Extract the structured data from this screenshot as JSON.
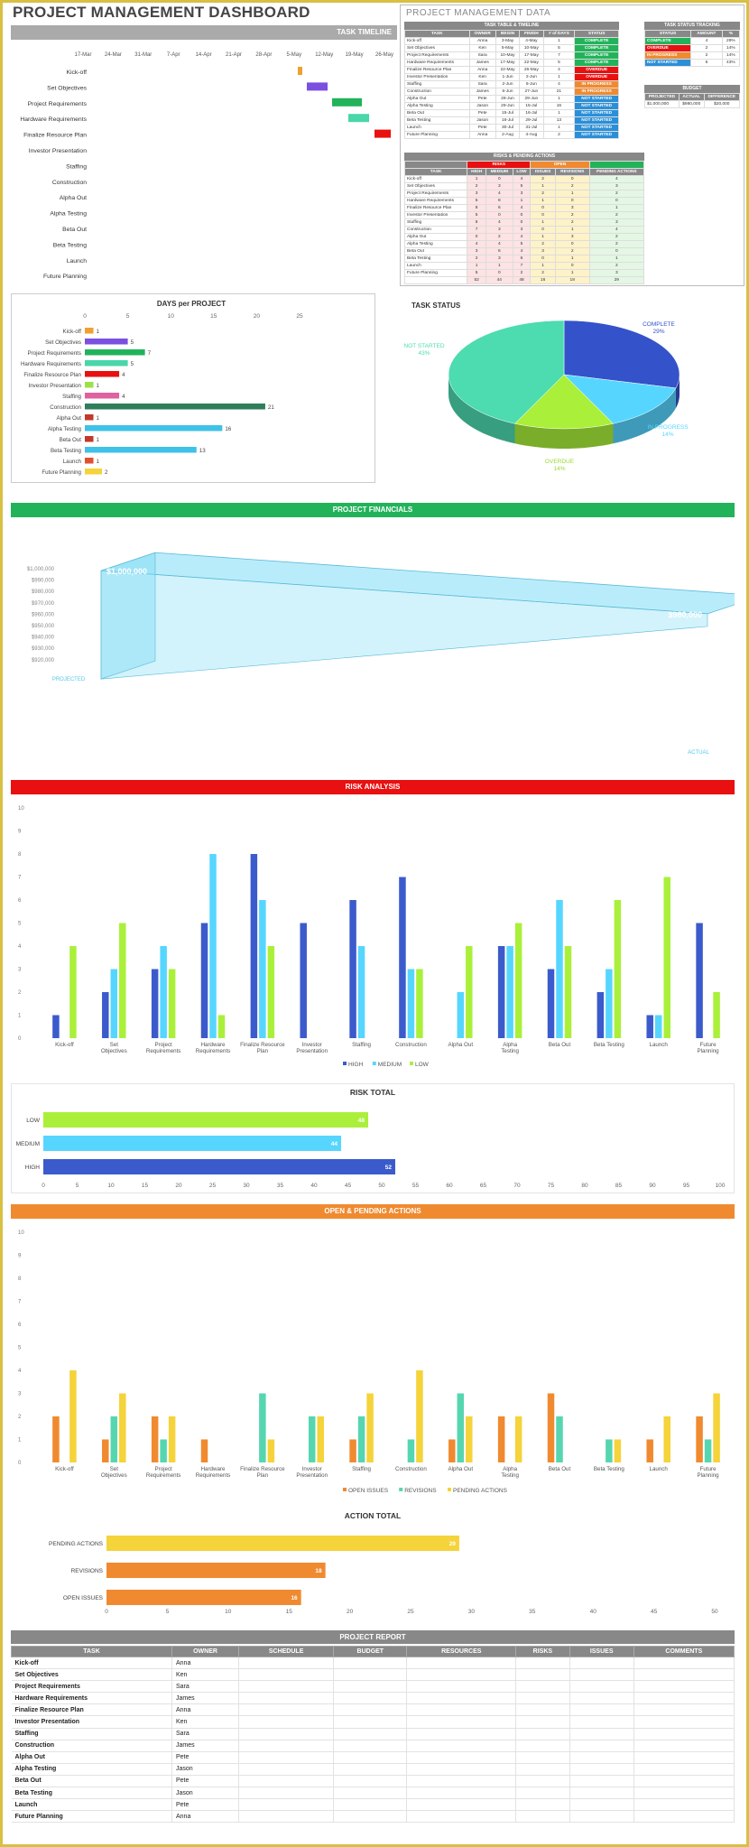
{
  "header": {
    "title": "PROJECT MANAGEMENT DASHBOARD"
  },
  "tasks": [
    "Kick-off",
    "Set Objectives",
    "Project Requirements",
    "Hardware Requirements",
    "Finalize Resource Plan",
    "Investor Presentation",
    "Staffing",
    "Construction",
    "Alpha Out",
    "Alpha Testing",
    "Beta Out",
    "Beta Testing",
    "Launch",
    "Future Planning"
  ],
  "owners": [
    "Anna",
    "Ken",
    "Sara",
    "James",
    "Anna",
    "Ken",
    "Sara",
    "James",
    "Pete",
    "Jason",
    "Pete",
    "Jason",
    "Pete",
    "Anna"
  ],
  "timeline": {
    "title": "TASK TIMELINE",
    "dates": [
      "17-Mar",
      "24-Mar",
      "31-Mar",
      "7-Apr",
      "14-Apr",
      "21-Apr",
      "28-Apr",
      "5-May",
      "12-May",
      "19-May",
      "26-May"
    ],
    "color_orange": "#f0a030",
    "color_purple": "#7b4fe0",
    "color_green": "#22b35a",
    "color_teal": "#49d6a8",
    "color_red": "#e81010"
  },
  "data_panel": {
    "title": "PROJECT MANAGEMENT DATA",
    "timeline_table": {
      "title": "TASK TABLE & TIMELINE",
      "headers": [
        "TASK",
        "OWNER",
        "BEGIN",
        "FINISH",
        "# of DAYS",
        "STATUS"
      ],
      "rows": [
        [
          "Kick-off",
          "Anna",
          "3-May",
          "4-May",
          "1",
          "COMPLETE"
        ],
        [
          "Set Objectives",
          "Ken",
          "5-May",
          "10-May",
          "5",
          "COMPLETE"
        ],
        [
          "Project Requirements",
          "Sara",
          "10-May",
          "17-May",
          "7",
          "COMPLETE"
        ],
        [
          "Hardware Requirements",
          "James",
          "17-May",
          "22-May",
          "5",
          "COMPLETE"
        ],
        [
          "Finalize Resource Plan",
          "Anna",
          "22-May",
          "26-May",
          "4",
          "OVERDUE"
        ],
        [
          "Investor Presentation",
          "Ken",
          "1-Jun",
          "2-Jun",
          "1",
          "OVERDUE"
        ],
        [
          "Staffing",
          "Sara",
          "2-Jun",
          "6-Jun",
          "4",
          "IN PROGRESS"
        ],
        [
          "Construction",
          "James",
          "6-Jun",
          "27-Jun",
          "21",
          "IN PROGRESS"
        ],
        [
          "Alpha Out",
          "Pete",
          "28-Jun",
          "29-Jun",
          "1",
          "NOT STARTED"
        ],
        [
          "Alpha Testing",
          "Jason",
          "29-Jun",
          "15-Jul",
          "16",
          "NOT STARTED"
        ],
        [
          "Beta Out",
          "Pete",
          "15-Jul",
          "16-Jul",
          "1",
          "NOT STARTED"
        ],
        [
          "Beta Testing",
          "Jason",
          "16-Jul",
          "29-Jul",
          "13",
          "NOT STARTED"
        ],
        [
          "Launch",
          "Pete",
          "30-Jul",
          "31-Jul",
          "1",
          "NOT STARTED"
        ],
        [
          "Future Planning",
          "Anna",
          "2-Aug",
          "4-Aug",
          "2",
          "NOT STARTED"
        ]
      ]
    },
    "status_tracking": {
      "title": "TASK STATUS TRACKING",
      "headers": [
        "STATUS",
        "AMOUNT",
        "%"
      ],
      "rows": [
        [
          "COMPLETE",
          "4",
          "29%"
        ],
        [
          "OVERDUE",
          "2",
          "14%"
        ],
        [
          "IN PROGRESS",
          "2",
          "14%"
        ],
        [
          "NOT STARTED",
          "6",
          "43%"
        ]
      ]
    },
    "budget": {
      "title": "BUDGET",
      "headers": [
        "PROJECTED",
        "ACTUAL",
        "DIFFERENCE"
      ],
      "row": [
        "$1,000,000",
        "$980,000",
        "$20,000"
      ]
    },
    "risks_table": {
      "title": "RISKS & PENDING ACTIONS",
      "group_risks": "RISKS",
      "group_open": "OPEN",
      "headers": [
        "TASK",
        "HIGH",
        "MEDIUM",
        "LOW",
        "ISSUES",
        "REVISIONS",
        "PENDING ACTIONS"
      ],
      "rows": [
        [
          "Kick-off",
          "1",
          "0",
          "4",
          "2",
          "0",
          "4"
        ],
        [
          "Set Objectives",
          "2",
          "3",
          "5",
          "1",
          "2",
          "3"
        ],
        [
          "Project Requirements",
          "3",
          "4",
          "3",
          "2",
          "1",
          "2"
        ],
        [
          "Hardware Requirements",
          "5",
          "8",
          "1",
          "1",
          "0",
          "0"
        ],
        [
          "Finalize Resource Plan",
          "8",
          "6",
          "4",
          "0",
          "3",
          "1"
        ],
        [
          "Investor Presentation",
          "5",
          "0",
          "0",
          "0",
          "2",
          "2"
        ],
        [
          "Staffing",
          "6",
          "4",
          "0",
          "1",
          "2",
          "3"
        ],
        [
          "Construction",
          "7",
          "3",
          "3",
          "0",
          "1",
          "4"
        ],
        [
          "Alpha Out",
          "0",
          "2",
          "4",
          "1",
          "3",
          "2"
        ],
        [
          "Alpha Testing",
          "4",
          "4",
          "5",
          "2",
          "0",
          "2"
        ],
        [
          "Beta Out",
          "3",
          "6",
          "4",
          "3",
          "2",
          "0"
        ],
        [
          "Beta Testing",
          "2",
          "3",
          "6",
          "0",
          "1",
          "1"
        ],
        [
          "Launch",
          "1",
          "1",
          "7",
          "1",
          "0",
          "2"
        ],
        [
          "Future Planning",
          "5",
          "0",
          "2",
          "2",
          "1",
          "3"
        ],
        [
          "",
          "52",
          "44",
          "48",
          "16",
          "18",
          "29"
        ]
      ]
    }
  },
  "days_chart": {
    "title": "DAYS per PROJECT",
    "ticks": [
      "0",
      "5",
      "10",
      "15",
      "20",
      "25"
    ]
  },
  "status_chart": {
    "title": "TASK STATUS"
  },
  "financials": {
    "title": "PROJECT FINANCIALS",
    "color": "#22b35a"
  },
  "risk_analysis": {
    "title": "RISK ANALYSIS",
    "color": "#e81010"
  },
  "risk_total": {
    "title": "RISK TOTAL"
  },
  "open_pending": {
    "title": "OPEN & PENDING ACTIONS",
    "color": "#f08a30"
  },
  "action_total": {
    "title": "ACTION TOTAL"
  },
  "report": {
    "title": "PROJECT REPORT",
    "headers": [
      "TASK",
      "OWNER",
      "SCHEDULE",
      "BUDGET",
      "RESOURCES",
      "RISKS",
      "ISSUES",
      "COMMENTS"
    ]
  },
  "chart_data": [
    {
      "type": "bar",
      "title": "DAYS per PROJECT",
      "categories": [
        "Kick-off",
        "Set Objectives",
        "Project Requirements",
        "Hardware Requirements",
        "Finalize Resource Plan",
        "Investor Presentation",
        "Staffing",
        "Construction",
        "Alpha Out",
        "Alpha Testing",
        "Beta Out",
        "Beta Testing",
        "Launch",
        "Future Planning"
      ],
      "values": [
        1,
        5,
        7,
        5,
        4,
        1,
        4,
        21,
        1,
        16,
        1,
        13,
        1,
        2
      ],
      "colors": [
        "#f0a030",
        "#7b4fe0",
        "#22b35a",
        "#49d6a8",
        "#e81010",
        "#9be24a",
        "#e060a0",
        "#2e7d5b",
        "#c0392b",
        "#3fc1e8",
        "#c0392b",
        "#3fc1e8",
        "#e05030",
        "#f5d33a"
      ],
      "xlim": [
        0,
        25
      ]
    },
    {
      "type": "pie",
      "title": "TASK STATUS",
      "labels": [
        "COMPLETE",
        "IN PROGRESS",
        "OVERDUE",
        "NOT STARTED"
      ],
      "values": [
        29,
        14,
        14,
        43
      ],
      "percent_labels": [
        "29%",
        "14%",
        "14%",
        "43%"
      ],
      "colors": [
        "#3452c9",
        "#56d6ff",
        "#aaf03a",
        "#4ddbb0"
      ]
    },
    {
      "type": "area",
      "title": "PROJECT FINANCIALS",
      "categories": [
        "PROJECTED",
        "ACTUAL"
      ],
      "values": [
        1000000,
        980000
      ],
      "value_labels": [
        "$1,000,000",
        "$980,000"
      ],
      "y_ticks": [
        "$1,000,000",
        "$990,000",
        "$980,000",
        "$970,000",
        "$960,000",
        "$950,000",
        "$940,000",
        "$930,000",
        "$920,000"
      ],
      "color": "#7fdcf5"
    },
    {
      "type": "bar",
      "title": "RISK ANALYSIS",
      "categories": [
        "Kick-off",
        "Set Objectives",
        "Project Requirements",
        "Hardware Requirements",
        "Finalize Resource Plan",
        "Investor Presentation",
        "Staffing",
        "Construction",
        "Alpha Out",
        "Alpha Testing",
        "Beta Out",
        "Beta Testing",
        "Launch",
        "Future Planning"
      ],
      "series": [
        {
          "name": "HIGH",
          "color": "#3b5bcc",
          "values": [
            1,
            2,
            3,
            5,
            8,
            5,
            6,
            7,
            0,
            4,
            3,
            2,
            1,
            5
          ]
        },
        {
          "name": "MEDIUM",
          "color": "#56d6ff",
          "values": [
            0,
            3,
            4,
            8,
            6,
            0,
            4,
            3,
            2,
            4,
            6,
            3,
            1,
            0
          ]
        },
        {
          "name": "LOW",
          "color": "#aaf03a",
          "values": [
            4,
            5,
            3,
            1,
            4,
            0,
            0,
            3,
            4,
            5,
            4,
            6,
            7,
            2
          ]
        }
      ],
      "ylim": [
        0,
        10
      ]
    },
    {
      "type": "bar",
      "title": "RISK TOTAL",
      "categories": [
        "LOW",
        "MEDIUM",
        "HIGH"
      ],
      "values": [
        48,
        44,
        52
      ],
      "colors": [
        "#aaf03a",
        "#56d6ff",
        "#3b5bcc"
      ],
      "xlim": [
        0,
        100
      ]
    },
    {
      "type": "bar",
      "title": "OPEN & PENDING ACTIONS",
      "categories": [
        "Kick-off",
        "Set Objectives",
        "Project Requirements",
        "Hardware Requirements",
        "Finalize Resource Plan",
        "Investor Presentation",
        "Staffing",
        "Construction",
        "Alpha Out",
        "Alpha Testing",
        "Beta Out",
        "Beta Testing",
        "Launch",
        "Future Planning"
      ],
      "series": [
        {
          "name": "OPEN ISSUES",
          "color": "#f08a30",
          "values": [
            2,
            1,
            2,
            1,
            0,
            0,
            1,
            0,
            1,
            2,
            3,
            0,
            1,
            2
          ]
        },
        {
          "name": "REVISIONS",
          "color": "#56d6b0",
          "values": [
            0,
            2,
            1,
            0,
            3,
            2,
            2,
            1,
            3,
            0,
            2,
            1,
            0,
            1
          ]
        },
        {
          "name": "PENDING ACTIONS",
          "color": "#f5d33a",
          "values": [
            4,
            3,
            2,
            0,
            1,
            2,
            3,
            4,
            2,
            2,
            0,
            1,
            2,
            3
          ]
        }
      ],
      "ylim": [
        0,
        10
      ]
    },
    {
      "type": "bar",
      "title": "ACTION TOTAL",
      "categories": [
        "PENDING ACTIONS",
        "REVISIONS",
        "OPEN ISSUES"
      ],
      "values": [
        29,
        18,
        16
      ],
      "colors": [
        "#f5d33a",
        "#f08a30",
        "#f08a30"
      ],
      "xlim": [
        0,
        50
      ]
    }
  ]
}
